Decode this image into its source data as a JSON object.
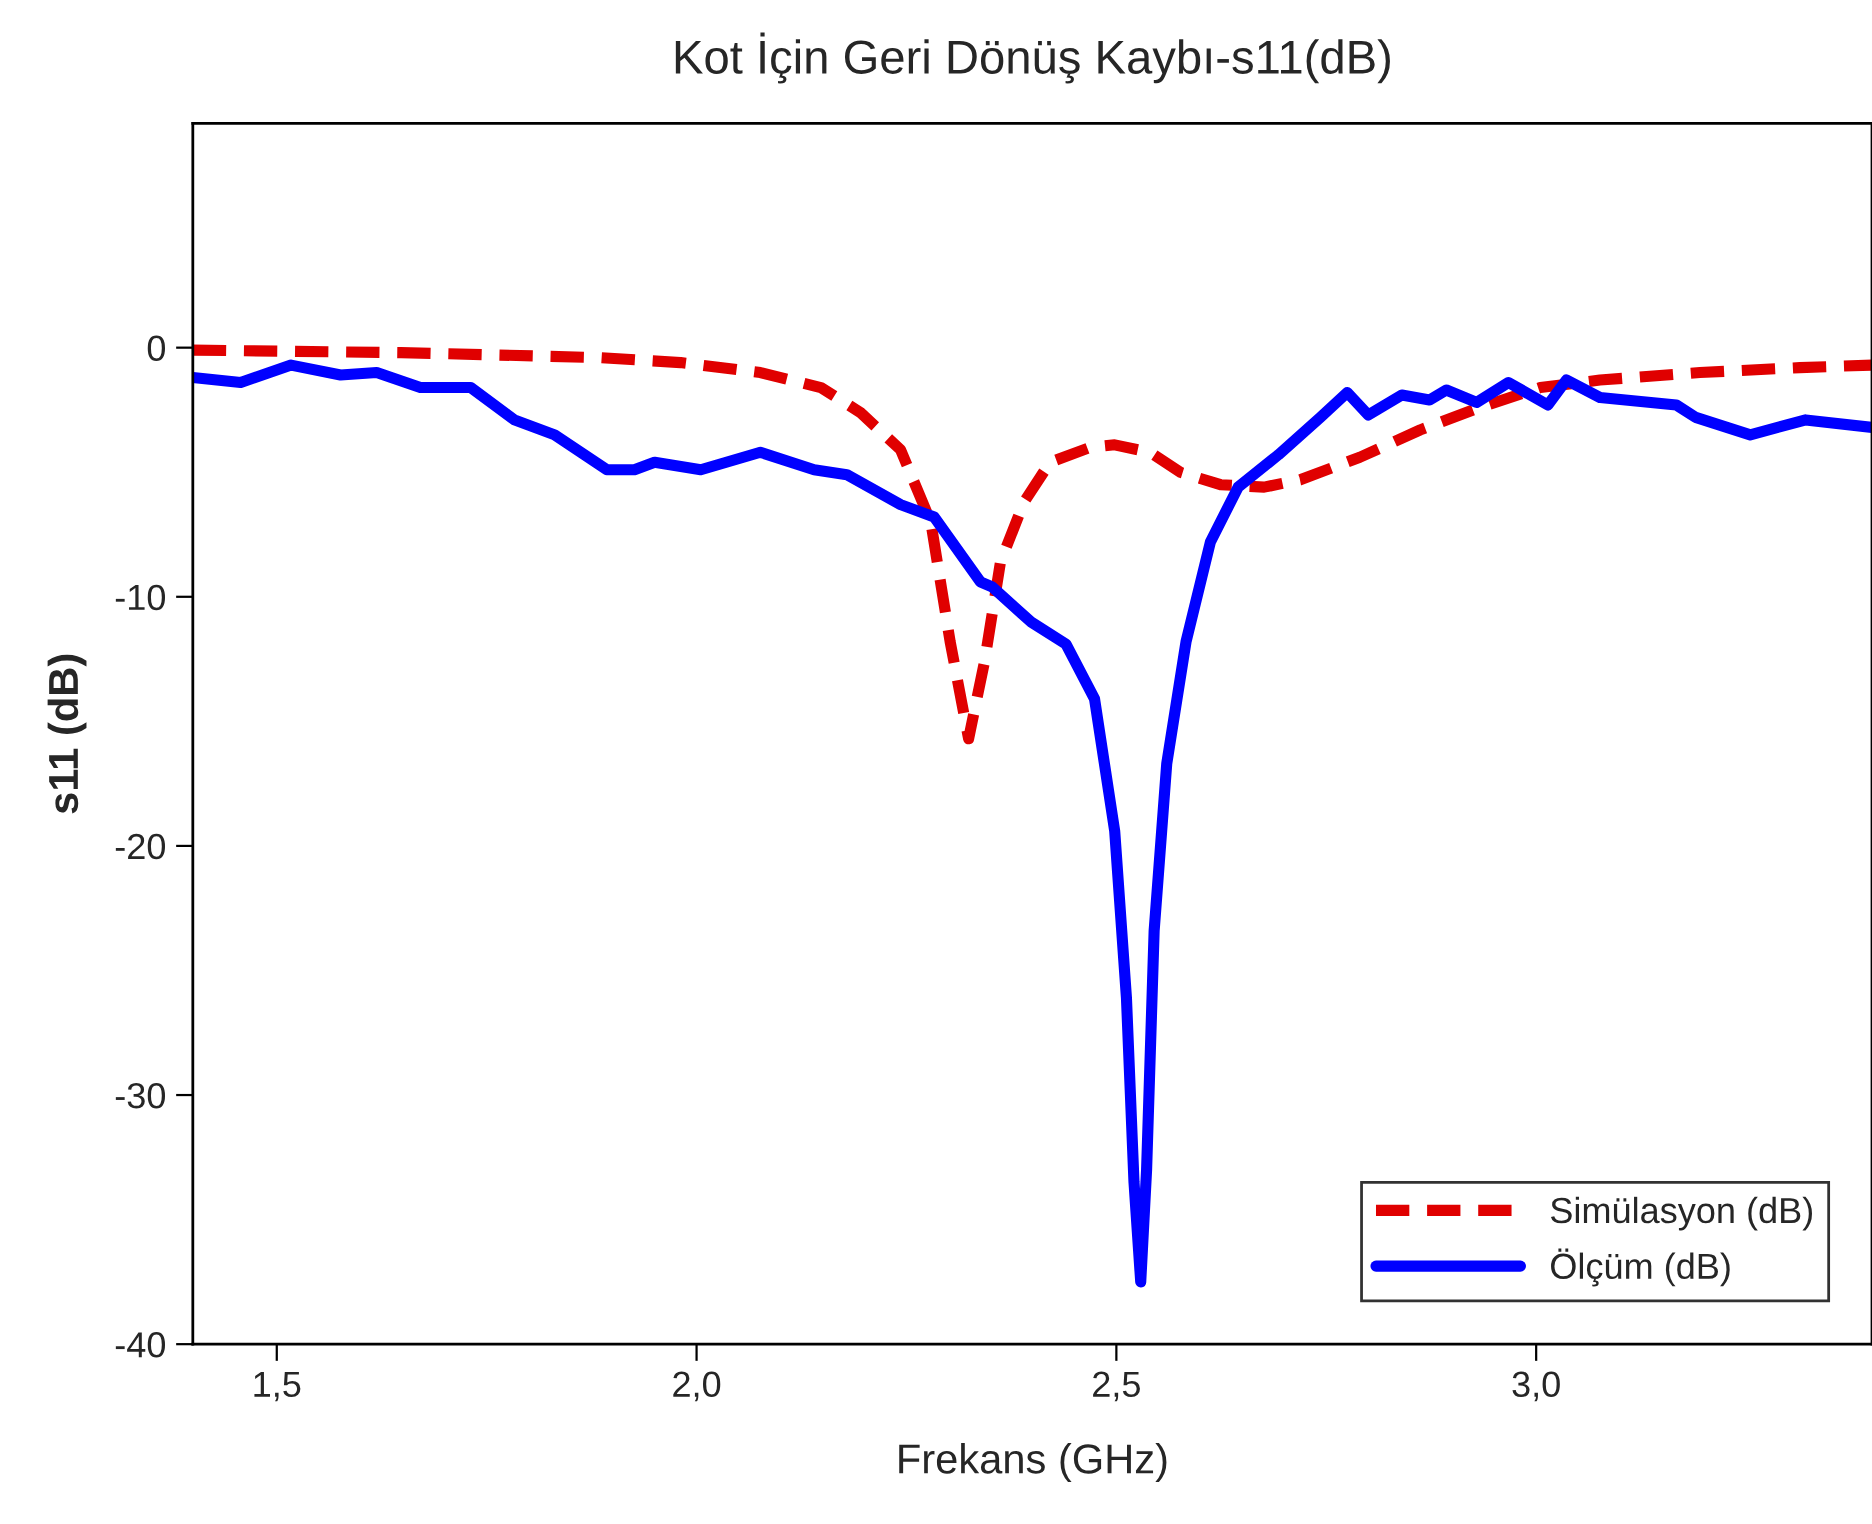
{
  "chart_data": {
    "type": "line",
    "title": "Kot İçin Geri Dönüş Kaybı-s11(dB)",
    "xlabel": "Frekans (GHz)",
    "ylabel": "s11 (dB)",
    "xlim": [
      1.4,
      3.4
    ],
    "ylim": [
      -40,
      9
    ],
    "xticks": [
      {
        "value": 1.5,
        "label": "1,5"
      },
      {
        "value": 2.0,
        "label": "2,0"
      },
      {
        "value": 2.5,
        "label": "2,5"
      },
      {
        "value": 3.0,
        "label": "3,0"
      }
    ],
    "yticks": [
      -40,
      -30,
      -20,
      -10,
      0
    ],
    "grid": false,
    "legend": "bottom right",
    "marker": "none",
    "series": [
      {
        "name": "Simülasyon (dB)",
        "color": "#e00000",
        "line_style": "dashed",
        "x": [
          1.4,
          1.648,
          1.886,
          1.981,
          2.076,
          2.148,
          2.195,
          2.243,
          2.279,
          2.302,
          2.324,
          2.343,
          2.362,
          2.39,
          2.421,
          2.469,
          2.498,
          2.54,
          2.576,
          2.624,
          2.676,
          2.719,
          2.79,
          2.862,
          2.933,
          3.005,
          3.076,
          3.195,
          3.314,
          3.4
        ],
        "values": [
          -0.1,
          -0.2,
          -0.4,
          -0.6,
          -1.0,
          -1.6,
          -2.6,
          -4.1,
          -7.0,
          -11.8,
          -15.7,
          -12.6,
          -8.6,
          -6.2,
          -4.6,
          -4.0,
          -3.9,
          -4.2,
          -5.0,
          -5.5,
          -5.6,
          -5.3,
          -4.4,
          -3.3,
          -2.4,
          -1.6,
          -1.3,
          -1.0,
          -0.8,
          -0.7
        ]
      },
      {
        "name": "Ölçüm (dB)",
        "color": "#0000ff",
        "line_style": "solid",
        "x": [
          1.4,
          1.457,
          1.517,
          1.576,
          1.619,
          1.671,
          1.731,
          1.783,
          1.831,
          1.893,
          1.926,
          1.95,
          2.005,
          2.076,
          2.14,
          2.179,
          2.243,
          2.283,
          2.338,
          2.352,
          2.398,
          2.44,
          2.474,
          2.498,
          2.512,
          2.521,
          2.529,
          2.536,
          2.545,
          2.56,
          2.583,
          2.612,
          2.645,
          2.693,
          2.743,
          2.775,
          2.8,
          2.84,
          2.873,
          2.893,
          2.929,
          2.967,
          3.014,
          3.036,
          3.076,
          3.167,
          3.19,
          3.255,
          3.321,
          3.4
        ],
        "values": [
          -1.2,
          -1.4,
          -0.7,
          -1.1,
          -1.0,
          -1.6,
          -1.6,
          -2.9,
          -3.5,
          -4.9,
          -4.9,
          -4.6,
          -4.9,
          -4.2,
          -4.9,
          -5.1,
          -6.3,
          -6.8,
          -9.4,
          -9.6,
          -11.0,
          -11.9,
          -14.1,
          -19.4,
          -26.1,
          -33.5,
          -37.5,
          -33.0,
          -23.4,
          -16.7,
          -11.8,
          -7.8,
          -5.6,
          -4.3,
          -2.8,
          -1.8,
          -2.7,
          -1.9,
          -2.1,
          -1.7,
          -2.2,
          -1.4,
          -2.3,
          -1.3,
          -2.0,
          -2.3,
          -2.8,
          -3.5,
          -2.9,
          -3.2
        ]
      }
    ]
  }
}
